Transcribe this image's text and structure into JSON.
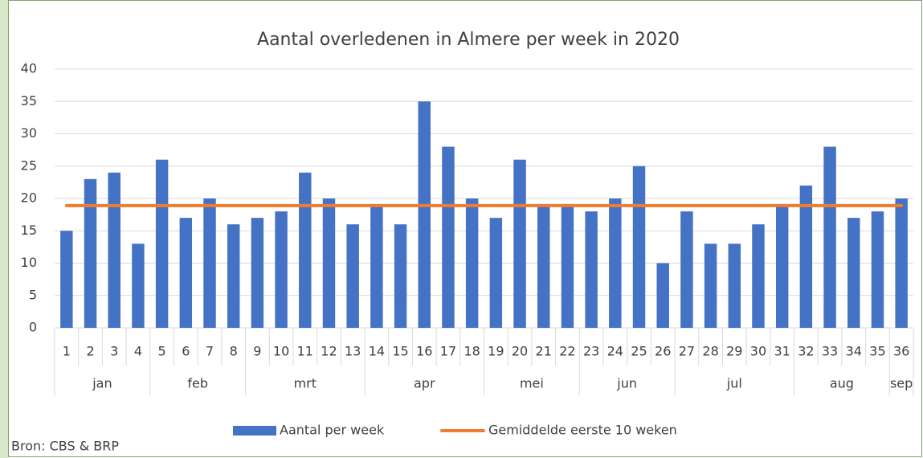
{
  "chart_data": {
    "type": "bar",
    "title": "Aantal overledenen in Almere per week in 2020",
    "annotation": "Bron: CBS & BRP",
    "categories": [
      "1",
      "2",
      "3",
      "4",
      "5",
      "6",
      "7",
      "8",
      "9",
      "10",
      "11",
      "12",
      "13",
      "14",
      "15",
      "16",
      "17",
      "18",
      "19",
      "20",
      "21",
      "22",
      "23",
      "24",
      "25",
      "26",
      "27",
      "28",
      "29",
      "30",
      "31",
      "32",
      "33",
      "34",
      "35",
      "36"
    ],
    "months": [
      "jan",
      "jan",
      "jan",
      "jan",
      "feb",
      "feb",
      "feb",
      "feb",
      "mrt",
      "mrt",
      "mrt",
      "mrt",
      "mrt",
      "apr",
      "apr",
      "apr",
      "apr",
      "apr",
      "mei",
      "mei",
      "mei",
      "mei",
      "jun",
      "jun",
      "jun",
      "jun",
      "jul",
      "jul",
      "jul",
      "jul",
      "jul",
      "aug",
      "aug",
      "aug",
      "aug",
      "sep"
    ],
    "series": [
      {
        "name": "Aantal per week",
        "type": "bar",
        "color": "#4472c4",
        "values": [
          15,
          23,
          24,
          13,
          26,
          17,
          20,
          16,
          17,
          18,
          24,
          20,
          16,
          19,
          16,
          35,
          28,
          20,
          17,
          26,
          19,
          19,
          18,
          20,
          25,
          10,
          18,
          13,
          13,
          16,
          19,
          22,
          28,
          17,
          18,
          20
        ]
      },
      {
        "name": "Gemiddelde eerste 10 weken",
        "type": "line",
        "color": "#ed7d31",
        "values": [
          18.9,
          18.9,
          18.9,
          18.9,
          18.9,
          18.9,
          18.9,
          18.9,
          18.9,
          18.9,
          18.9,
          18.9,
          18.9,
          18.9,
          18.9,
          18.9,
          18.9,
          18.9,
          18.9,
          18.9,
          18.9,
          18.9,
          18.9,
          18.9,
          18.9,
          18.9,
          18.9,
          18.9,
          18.9,
          18.9,
          18.9,
          18.9,
          18.9,
          18.9,
          18.9,
          18.9
        ]
      }
    ],
    "ylim": [
      0,
      40
    ],
    "yticks": [
      0,
      5,
      10,
      15,
      20,
      25,
      30,
      35,
      40
    ],
    "grid": true,
    "legend": "bottom"
  }
}
